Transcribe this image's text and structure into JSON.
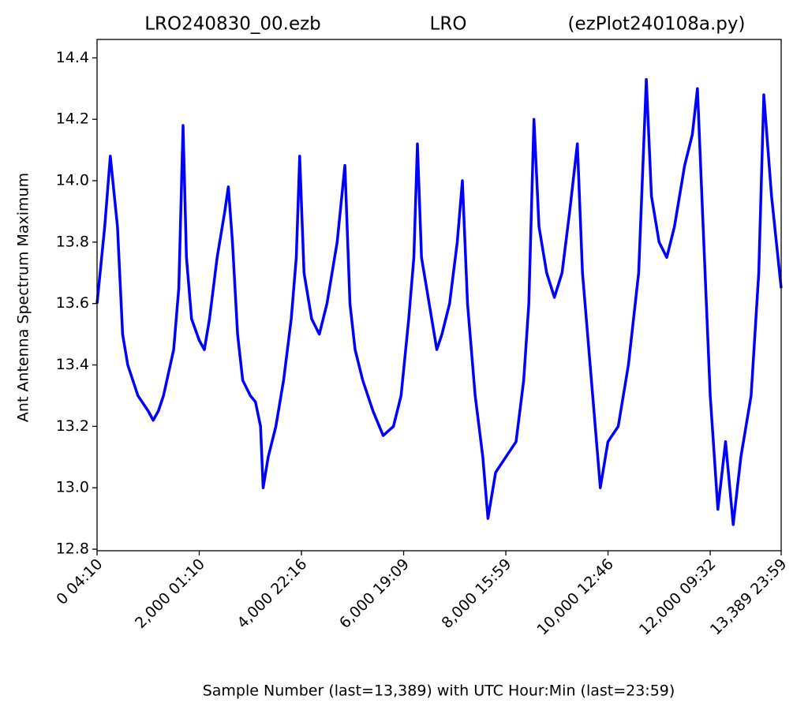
{
  "chart_data": {
    "type": "line",
    "titles": [
      "LRO240830_00.ezb",
      "LRO",
      "(ezPlot240108a.py)"
    ],
    "x_label": "Sample Number (last=13,389) with UTC Hour:Min (last=23:59)",
    "y_label": "Ant Antenna Spectrum Maximum",
    "xlim": [
      0,
      13389
    ],
    "ylim": [
      12.795,
      14.46
    ],
    "xticks": [
      {
        "value": 0,
        "label": "0  04:10"
      },
      {
        "value": 2000,
        "label": "2,000  01:10"
      },
      {
        "value": 4000,
        "label": "4,000  22:16"
      },
      {
        "value": 6000,
        "label": "6,000  19:09"
      },
      {
        "value": 8000,
        "label": "8,000  15:59"
      },
      {
        "value": 10000,
        "label": "10,000  12:46"
      },
      {
        "value": 12000,
        "label": "12,000  09:32"
      },
      {
        "value": 13389,
        "label": "13,389  23:59"
      }
    ],
    "yticks": [
      {
        "value": 12.8,
        "label": "12.8"
      },
      {
        "value": 13.0,
        "label": "13.0"
      },
      {
        "value": 13.2,
        "label": "13.2"
      },
      {
        "value": 13.4,
        "label": "13.4"
      },
      {
        "value": 13.6,
        "label": "13.6"
      },
      {
        "value": 13.8,
        "label": "13.8"
      },
      {
        "value": 14.0,
        "label": "14.0"
      },
      {
        "value": 14.2,
        "label": "14.2"
      },
      {
        "value": 14.4,
        "label": "14.4"
      }
    ],
    "series": [
      {
        "name": "Ant Antenna Spectrum Maximum",
        "color": "#0000ff",
        "x": [
          0,
          150,
          260,
          400,
          500,
          600,
          800,
          1000,
          1100,
          1200,
          1300,
          1500,
          1600,
          1683,
          1750,
          1850,
          2000,
          2100,
          2200,
          2350,
          2500,
          2570,
          2650,
          2750,
          2850,
          3000,
          3100,
          3200,
          3250,
          3350,
          3500,
          3650,
          3800,
          3900,
          3965,
          4050,
          4200,
          4350,
          4500,
          4700,
          4850,
          4950,
          5050,
          5200,
          5400,
          5600,
          5800,
          5950,
          6100,
          6200,
          6270,
          6350,
          6500,
          6650,
          6750,
          6900,
          7050,
          7150,
          7250,
          7400,
          7550,
          7650,
          7800,
          8000,
          8200,
          8350,
          8450,
          8550,
          8650,
          8800,
          8950,
          9100,
          9250,
          9400,
          9500,
          9650,
          9800,
          9850,
          10000,
          10200,
          10400,
          10600,
          10750,
          10850,
          11000,
          11150,
          11300,
          11500,
          11650,
          11750,
          11850,
          12000,
          12150,
          12300,
          12450,
          12600,
          12800,
          12950,
          13050,
          13200,
          13389
        ],
        "values": [
          13.6,
          13.85,
          14.08,
          13.85,
          13.5,
          13.4,
          13.3,
          13.25,
          13.22,
          13.25,
          13.3,
          13.45,
          13.65,
          14.18,
          13.75,
          13.55,
          13.48,
          13.45,
          13.55,
          13.75,
          13.9,
          13.98,
          13.8,
          13.5,
          13.35,
          13.3,
          13.28,
          13.2,
          13.0,
          13.1,
          13.2,
          13.35,
          13.55,
          13.75,
          14.08,
          13.7,
          13.55,
          13.5,
          13.6,
          13.8,
          14.05,
          13.6,
          13.45,
          13.35,
          13.25,
          13.17,
          13.2,
          13.3,
          13.55,
          13.75,
          14.12,
          13.75,
          13.6,
          13.45,
          13.5,
          13.6,
          13.8,
          14.0,
          13.6,
          13.3,
          13.1,
          12.9,
          13.05,
          13.1,
          13.15,
          13.35,
          13.6,
          14.2,
          13.85,
          13.7,
          13.62,
          13.7,
          13.9,
          14.12,
          13.7,
          13.4,
          13.1,
          13.0,
          13.15,
          13.2,
          13.4,
          13.7,
          14.33,
          13.95,
          13.8,
          13.75,
          13.85,
          14.05,
          14.15,
          14.3,
          13.9,
          13.3,
          12.93,
          13.15,
          12.88,
          13.1,
          13.3,
          13.7,
          14.28,
          13.95,
          13.65
        ]
      }
    ]
  }
}
